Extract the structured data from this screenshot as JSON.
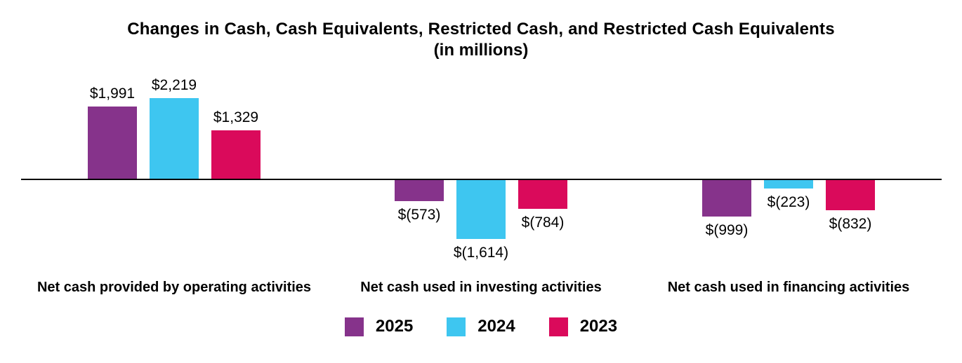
{
  "page": {
    "background": "#ffffff",
    "text_color": "#000000"
  },
  "chart_data": {
    "type": "bar",
    "title": "Changes in Cash, Cash Equivalents, Restricted Cash, and Restricted Cash Equivalents",
    "subtitle": "(in millions)",
    "categories": [
      "Net cash provided by operating activities",
      "Net cash used in investing activities",
      "Net cash used in financing activities"
    ],
    "series": [
      {
        "name": "2025",
        "color": "#86338B",
        "values": [
          1991,
          -573,
          -999
        ],
        "value_labels": [
          "$1,991",
          "$(573)",
          "$(999)"
        ]
      },
      {
        "name": "2024",
        "color": "#3EC6F0",
        "values": [
          2219,
          -1614,
          -223
        ],
        "value_labels": [
          "$2,219",
          "$(1,614)",
          "$(223)"
        ]
      },
      {
        "name": "2023",
        "color": "#DA0A5B",
        "values": [
          1329,
          -784,
          -832
        ],
        "value_labels": [
          "$1,329",
          "$(784)",
          "$(832)"
        ]
      }
    ],
    "legend": [
      "2025",
      "2024",
      "2023"
    ],
    "legend_position": "bottom",
    "grid": false,
    "axis": {
      "baseline_value": 0,
      "ylim": [
        -1700,
        2300
      ],
      "axis_color": "#000000"
    }
  }
}
